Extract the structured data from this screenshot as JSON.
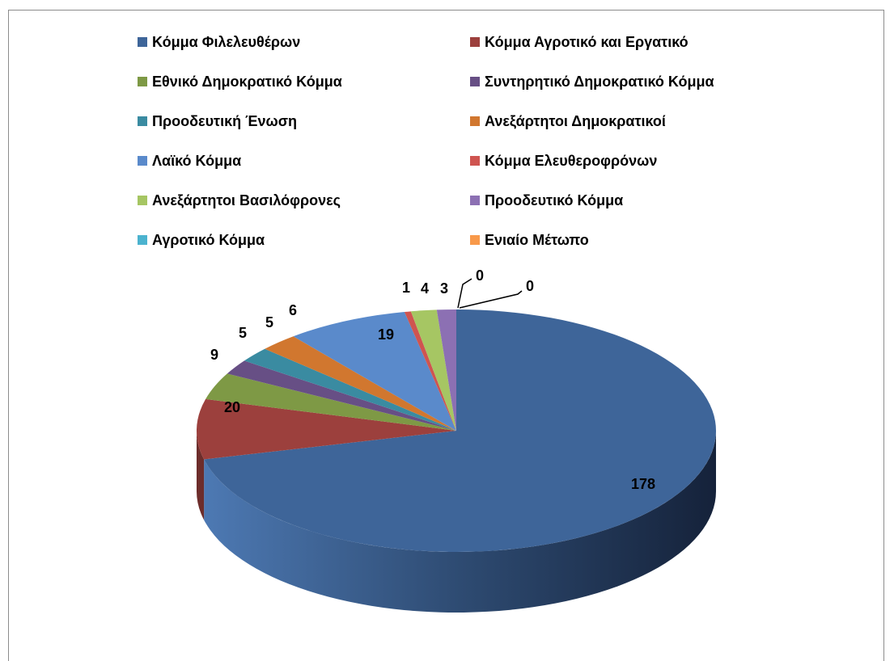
{
  "chart_data": {
    "type": "pie3d",
    "categories": [
      "Κόμμα Φιλελευθέρων",
      "Κόμμα Αγροτικό και Εργατικό",
      "Εθνικό Δημοκρατικό Κόμμα",
      "Συντηρητικό Δημοκρατικό Κόμμα",
      "Προοδευτική Ένωση",
      "Ανεξάρτητοι Δημοκρατικοί",
      "Λαϊκό Κόμμα",
      "Κόμμα Ελευθεροφρόνων",
      "Ανεξάρτητοι Βασιλόφρονες",
      "Προοδευτικό Κόμμα",
      "Αγροτικό Κόμμα",
      "Ενιαίο Μέτωπο"
    ],
    "values": [
      178,
      20,
      9,
      5,
      5,
      6,
      19,
      1,
      4,
      3,
      0,
      0
    ],
    "colors": [
      "#3e6599",
      "#9c403d",
      "#7e9945",
      "#674f85",
      "#3a8ba1",
      "#d1772f",
      "#5a8acb",
      "#cf5450",
      "#a6c663",
      "#8c70b3",
      "#4cb3cf",
      "#f8994a"
    ],
    "legend": "top"
  }
}
